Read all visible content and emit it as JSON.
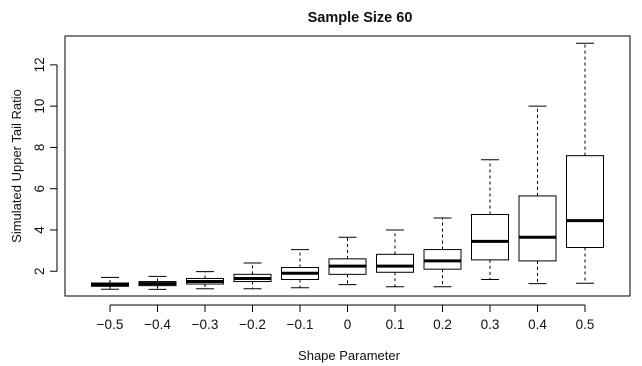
{
  "chart_data": {
    "type": "boxplot",
    "title": "Sample Size 60",
    "xlabel": "Shape Parameter",
    "ylabel": "Simulated Upper Tail Ratio",
    "categories": [
      "−0.5",
      "−0.4",
      "−0.3",
      "−0.2",
      "−0.1",
      "0",
      "0.1",
      "0.2",
      "0.3",
      "0.4",
      "0.5"
    ],
    "ylim": [
      0.8,
      13.4
    ],
    "yticks": [
      2,
      4,
      6,
      8,
      10,
      12
    ],
    "grid": false,
    "boxes": [
      {
        "whisker_low": 1.13,
        "q1": 1.27,
        "median": 1.35,
        "q3": 1.43,
        "whisker_high": 1.7
      },
      {
        "whisker_low": 1.12,
        "q1": 1.3,
        "median": 1.4,
        "q3": 1.5,
        "whisker_high": 1.75
      },
      {
        "whisker_low": 1.15,
        "q1": 1.38,
        "median": 1.5,
        "q3": 1.65,
        "whisker_high": 1.98
      },
      {
        "whisker_low": 1.15,
        "q1": 1.5,
        "median": 1.65,
        "q3": 1.85,
        "whisker_high": 2.4
      },
      {
        "whisker_low": 1.2,
        "q1": 1.6,
        "median": 1.9,
        "q3": 2.18,
        "whisker_high": 3.05
      },
      {
        "whisker_low": 1.35,
        "q1": 1.85,
        "median": 2.25,
        "q3": 2.6,
        "whisker_high": 3.65
      },
      {
        "whisker_low": 1.25,
        "q1": 1.95,
        "median": 2.25,
        "q3": 2.82,
        "whisker_high": 4.0
      },
      {
        "whisker_low": 1.25,
        "q1": 2.1,
        "median": 2.5,
        "q3": 3.05,
        "whisker_high": 4.58
      },
      {
        "whisker_low": 1.6,
        "q1": 2.55,
        "median": 3.45,
        "q3": 4.75,
        "whisker_high": 7.4
      },
      {
        "whisker_low": 1.4,
        "q1": 2.5,
        "median": 3.65,
        "q3": 5.65,
        "whisker_high": 10.0
      },
      {
        "whisker_low": 1.42,
        "q1": 3.15,
        "median": 4.45,
        "q3": 7.6,
        "whisker_high": 13.05
      }
    ]
  }
}
